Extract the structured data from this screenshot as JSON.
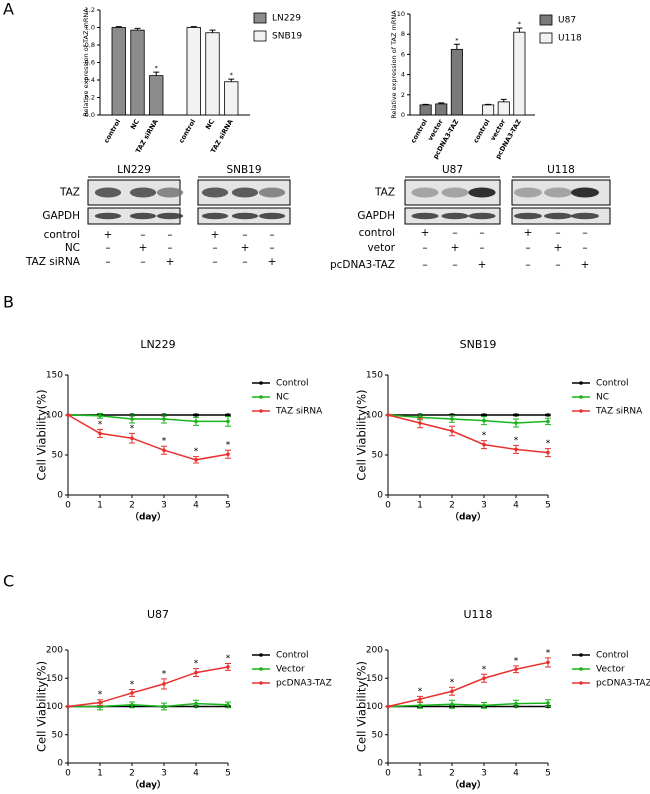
{
  "panels": [
    "A",
    "B",
    "C"
  ],
  "blots": [
    {
      "cells": [
        "LN229",
        "SNB19"
      ],
      "rows": [
        "TAZ",
        "GAPDH"
      ],
      "conditions": [
        {
          "label": "control",
          "marks": [
            "+",
            "–",
            "–"
          ]
        },
        {
          "label": "NC",
          "marks": [
            "–",
            "+",
            "–"
          ]
        },
        {
          "label": "TAZ siRNA",
          "marks": [
            "–",
            "–",
            "+"
          ]
        }
      ]
    },
    {
      "cells": [
        "U87",
        "U118"
      ],
      "rows": [
        "TAZ",
        "GAPDH"
      ],
      "conditions": [
        {
          "label": "control",
          "marks": [
            "+",
            "–",
            "–"
          ]
        },
        {
          "label": "vetor",
          "marks": [
            "–",
            "+",
            "–"
          ]
        },
        {
          "label": "pcDNA3-TAZ",
          "marks": [
            "–",
            "–",
            "+"
          ]
        }
      ]
    }
  ],
  "chart_data": [
    {
      "type": "bar",
      "ylabel": "Relative expression of TAZ mRNA",
      "categories": [
        "control",
        "NC",
        "TAZ siRNA"
      ],
      "ylim": [
        0,
        1.2
      ],
      "yticks": [
        {
          "value": 0,
          "label": "0.0"
        },
        {
          "value": 0.2,
          "label": "0.2"
        },
        {
          "value": 0.4,
          "label": "0.4"
        },
        {
          "value": 0.6,
          "label": "0.6"
        },
        {
          "value": 0.8,
          "label": "0.8"
        },
        {
          "value": 1,
          "label": "1.0"
        },
        {
          "value": 1.2,
          "label": "1.2"
        }
      ],
      "series": [
        {
          "name": "LN229",
          "color": "#8c8c8c",
          "values": [
            1.0,
            0.97,
            0.45
          ],
          "errors": [
            0.01,
            0.02,
            0.04
          ],
          "significance": [
            null,
            null,
            "*"
          ]
        },
        {
          "name": "SNB19",
          "color": "#f2f2f2",
          "values": [
            1.0,
            0.94,
            0.38
          ],
          "errors": [
            0.01,
            0.03,
            0.03
          ],
          "significance": [
            null,
            null,
            "*"
          ]
        }
      ]
    },
    {
      "type": "bar",
      "ylabel": "Relative expression of TAZ mRNA",
      "categories": [
        "control",
        "vector",
        "pcDNA3-TAZ"
      ],
      "ylim": [
        0,
        10
      ],
      "yticks": [
        0,
        2,
        4,
        6,
        8,
        10
      ],
      "series": [
        {
          "name": "U87",
          "color": "#7a7a7a",
          "values": [
            1.0,
            1.1,
            6.5
          ],
          "errors": [
            0.05,
            0.1,
            0.5
          ],
          "significance": [
            null,
            null,
            "*"
          ]
        },
        {
          "name": "U118",
          "color": "#f2f2f2",
          "values": [
            1.0,
            1.3,
            8.2
          ],
          "errors": [
            0.05,
            0.25,
            0.4
          ],
          "significance": [
            null,
            null,
            "*"
          ]
        }
      ]
    },
    {
      "type": "line",
      "title": "LN229",
      "xlabel": "（day）",
      "ylabel": "Cell Viability(%)",
      "x": [
        0,
        1,
        2,
        3,
        4,
        5
      ],
      "xlim": [
        0,
        5
      ],
      "xticks": [
        0,
        1,
        2,
        3,
        4,
        5
      ],
      "ylim": [
        0,
        150
      ],
      "yticks": [
        0,
        50,
        100,
        150
      ],
      "series": [
        {
          "name": "Control",
          "color": "#000000",
          "values": [
            100,
            100,
            100,
            100,
            100,
            100
          ],
          "errors": [
            0,
            1,
            1,
            1,
            1,
            1
          ]
        },
        {
          "name": "NC",
          "color": "#19b419",
          "values": [
            100,
            99,
            95,
            95,
            92,
            92
          ],
          "errors": [
            0,
            3,
            5,
            5,
            5,
            6
          ]
        },
        {
          "name": "TAZ siRNA",
          "color": "#e8312e",
          "values": [
            100,
            77,
            71,
            56,
            44,
            51
          ],
          "errors": [
            0,
            5,
            6,
            5,
            4,
            5
          ],
          "significance": [
            null,
            "*",
            "*",
            "*",
            "*",
            "*"
          ]
        }
      ]
    },
    {
      "type": "line",
      "title": "SNB19",
      "xlabel": "（day）",
      "ylabel": "Cell Viability(%)",
      "x": [
        0,
        1,
        2,
        3,
        4,
        5
      ],
      "xlim": [
        0,
        5
      ],
      "xticks": [
        0,
        1,
        2,
        3,
        4,
        5
      ],
      "ylim": [
        0,
        150
      ],
      "yticks": [
        0,
        50,
        100,
        150
      ],
      "series": [
        {
          "name": "Control",
          "color": "#000000",
          "values": [
            100,
            100,
            100,
            100,
            100,
            100
          ],
          "errors": [
            0,
            1,
            1,
            1,
            1,
            1
          ]
        },
        {
          "name": "NC",
          "color": "#19b419",
          "values": [
            100,
            97,
            95,
            93,
            90,
            92
          ],
          "errors": [
            0,
            3,
            4,
            5,
            5,
            4
          ]
        },
        {
          "name": "TAZ siRNA",
          "color": "#e8312e",
          "values": [
            100,
            90,
            80,
            63,
            57,
            53
          ],
          "errors": [
            0,
            6,
            6,
            5,
            5,
            5
          ],
          "significance": [
            null,
            null,
            null,
            "*",
            "*",
            "*"
          ]
        }
      ]
    },
    {
      "type": "line",
      "title": "U87",
      "xlabel": "（day）",
      "ylabel": "Cell Viability(%)",
      "x": [
        0,
        1,
        2,
        3,
        4,
        5
      ],
      "xlim": [
        0,
        5
      ],
      "xticks": [
        0,
        1,
        2,
        3,
        4,
        5
      ],
      "ylim": [
        0,
        200
      ],
      "yticks": [
        0,
        50,
        100,
        150,
        200
      ],
      "series": [
        {
          "name": "Control",
          "color": "#000000",
          "values": [
            100,
            100,
            100,
            100,
            100,
            100
          ],
          "errors": [
            0,
            1,
            1,
            1,
            1,
            1
          ]
        },
        {
          "name": "Vector",
          "color": "#19b419",
          "values": [
            100,
            100,
            103,
            100,
            105,
            103
          ],
          "errors": [
            0,
            6,
            5,
            6,
            6,
            5
          ]
        },
        {
          "name": "pcDNA3-TAZ",
          "color": "#e8312e",
          "values": [
            100,
            107,
            124,
            140,
            160,
            170
          ],
          "errors": [
            0,
            5,
            6,
            9,
            7,
            6
          ],
          "significance": [
            null,
            "*",
            "*",
            "*",
            "*",
            "*"
          ]
        }
      ]
    },
    {
      "type": "line",
      "title": "U118",
      "xlabel": "（day）",
      "ylabel": "Cell Viability(%)",
      "x": [
        0,
        1,
        2,
        3,
        4,
        5
      ],
      "xlim": [
        0,
        5
      ],
      "xticks": [
        0,
        1,
        2,
        3,
        4,
        5
      ],
      "ylim": [
        0,
        200
      ],
      "yticks": [
        0,
        50,
        100,
        150,
        200
      ],
      "series": [
        {
          "name": "Control",
          "color": "#000000",
          "values": [
            100,
            100,
            100,
            100,
            100,
            100
          ],
          "errors": [
            0,
            1,
            1,
            1,
            1,
            1
          ]
        },
        {
          "name": "Vector",
          "color": "#19b419",
          "values": [
            100,
            102,
            104,
            102,
            105,
            106
          ],
          "errors": [
            0,
            5,
            7,
            5,
            6,
            6
          ]
        },
        {
          "name": "pcDNA3-TAZ",
          "color": "#e8312e",
          "values": [
            100,
            113,
            127,
            150,
            166,
            178
          ],
          "errors": [
            0,
            5,
            7,
            7,
            6,
            8
          ],
          "significance": [
            null,
            "*",
            "*",
            "*",
            "*",
            "*"
          ]
        }
      ]
    }
  ]
}
